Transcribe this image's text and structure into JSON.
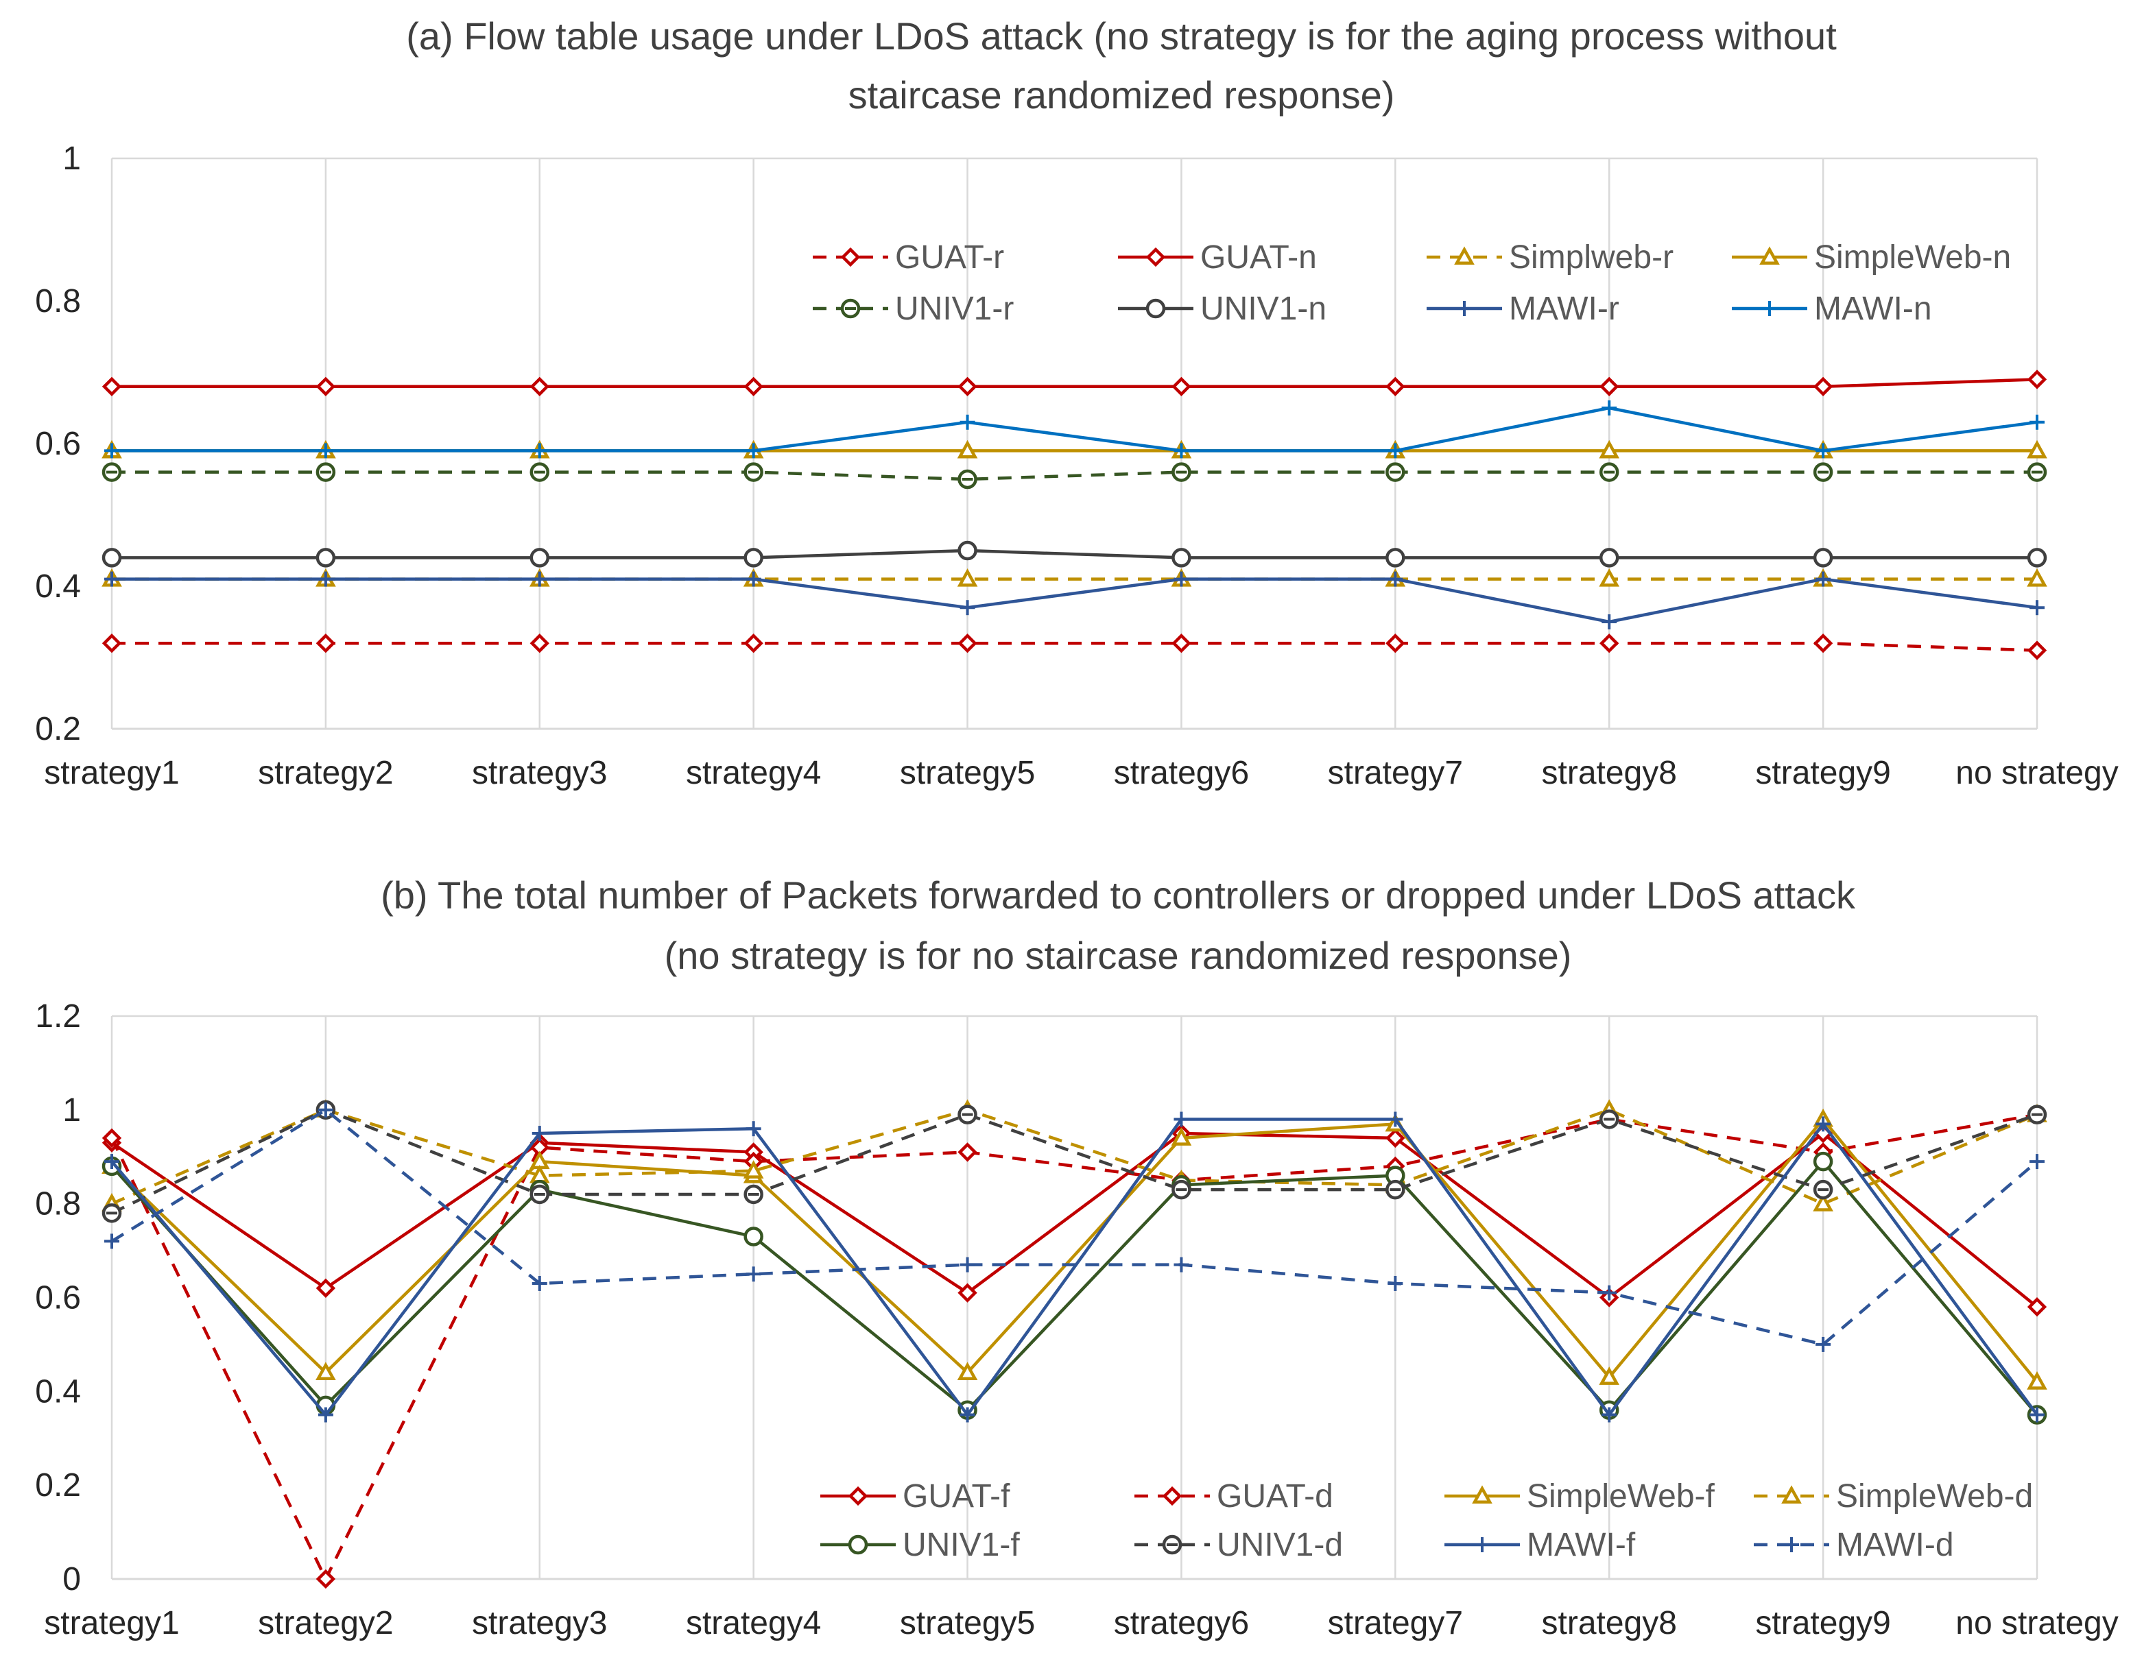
{
  "chart_data": [
    {
      "type": "line",
      "title": [
        "(a) Flow table usage under LDoS attack (no strategy is for the aging process without",
        "staircase randomized response)"
      ],
      "categories": [
        "strategy1",
        "strategy2",
        "strategy3",
        "strategy4",
        "strategy5",
        "strategy6",
        "strategy7",
        "strategy8",
        "strategy9",
        "no strategy"
      ],
      "ylim": [
        0.2,
        1
      ],
      "yticks": [
        "0.2",
        "0.4",
        "0.6",
        "0.8",
        "1"
      ],
      "ytick_values": [
        0.2,
        0.4,
        0.6,
        0.8,
        1.0
      ],
      "grid": "vertical",
      "legend_position": "top",
      "series": [
        {
          "name": "GUAT-r",
          "color": "#c00000",
          "dash": true,
          "marker": "diamond",
          "values": [
            0.32,
            0.32,
            0.32,
            0.32,
            0.32,
            0.32,
            0.32,
            0.32,
            0.32,
            0.31
          ]
        },
        {
          "name": "GUAT-n",
          "color": "#c00000",
          "dash": false,
          "marker": "diamond",
          "values": [
            0.68,
            0.68,
            0.68,
            0.68,
            0.68,
            0.68,
            0.68,
            0.68,
            0.68,
            0.69
          ]
        },
        {
          "name": "Simplweb-r",
          "color": "#bf9000",
          "dash": true,
          "marker": "triangle",
          "values": [
            0.41,
            0.41,
            0.41,
            0.41,
            0.41,
            0.41,
            0.41,
            0.41,
            0.41,
            0.41
          ]
        },
        {
          "name": "SimpleWeb-n",
          "color": "#bf9000",
          "dash": false,
          "marker": "triangle",
          "values": [
            0.59,
            0.59,
            0.59,
            0.59,
            0.59,
            0.59,
            0.59,
            0.59,
            0.59,
            0.59
          ]
        },
        {
          "name": "UNIV1-r",
          "color": "#375623",
          "dash": true,
          "marker": "circle-line",
          "values": [
            0.56,
            0.56,
            0.56,
            0.56,
            0.55,
            0.56,
            0.56,
            0.56,
            0.56,
            0.56
          ]
        },
        {
          "name": "UNIV1-n",
          "color": "#404040",
          "dash": false,
          "marker": "circle",
          "values": [
            0.44,
            0.44,
            0.44,
            0.44,
            0.45,
            0.44,
            0.44,
            0.44,
            0.44,
            0.44
          ]
        },
        {
          "name": "MAWI-r",
          "color": "#2f5597",
          "dash": false,
          "marker": "plus",
          "values": [
            0.41,
            0.41,
            0.41,
            0.41,
            0.37,
            0.41,
            0.41,
            0.35,
            0.41,
            0.37
          ]
        },
        {
          "name": "MAWI-n",
          "color": "#0070c0",
          "dash": false,
          "marker": "plus",
          "values": [
            0.59,
            0.59,
            0.59,
            0.59,
            0.63,
            0.59,
            0.59,
            0.65,
            0.59,
            0.63
          ]
        }
      ]
    },
    {
      "type": "line",
      "title": [
        "(b) The total number of Packets forwarded to controllers or dropped   under LDoS attack",
        "(no strategy is for no staircase randomized response)"
      ],
      "categories": [
        "strategy1",
        "strategy2",
        "strategy3",
        "strategy4",
        "strategy5",
        "strategy6",
        "strategy7",
        "strategy8",
        "strategy9",
        "no strategy"
      ],
      "ylim": [
        0,
        1.2
      ],
      "yticks": [
        "0",
        "0.2",
        "0.4",
        "0.6",
        "0.8",
        "1",
        "1.2"
      ],
      "ytick_values": [
        0,
        0.2,
        0.4,
        0.6,
        0.8,
        1.0,
        1.2
      ],
      "grid": "vertical",
      "legend_position": "bottom",
      "series": [
        {
          "name": "GUAT-f",
          "color": "#c00000",
          "dash": false,
          "marker": "diamond",
          "values": [
            0.93,
            0.62,
            0.93,
            0.91,
            0.61,
            0.95,
            0.94,
            0.6,
            0.95,
            0.58
          ]
        },
        {
          "name": "GUAT-d",
          "color": "#c00000",
          "dash": true,
          "marker": "diamond",
          "values": [
            0.94,
            0.0,
            0.92,
            0.89,
            0.91,
            0.85,
            0.88,
            0.98,
            0.91,
            0.99
          ]
        },
        {
          "name": "SimpleWeb-f",
          "color": "#bf9000",
          "dash": false,
          "marker": "triangle",
          "values": [
            0.88,
            0.44,
            0.89,
            0.86,
            0.44,
            0.94,
            0.97,
            0.43,
            0.98,
            0.42
          ]
        },
        {
          "name": "SimpleWeb-d",
          "color": "#bf9000",
          "dash": true,
          "marker": "triangle",
          "values": [
            0.8,
            1.0,
            0.86,
            0.87,
            1.0,
            0.85,
            0.84,
            1.0,
            0.8,
            0.99
          ]
        },
        {
          "name": "UNIV1-f",
          "color": "#375623",
          "dash": false,
          "marker": "circle",
          "values": [
            0.88,
            0.37,
            0.83,
            0.73,
            0.36,
            0.84,
            0.86,
            0.36,
            0.89,
            0.35
          ]
        },
        {
          "name": "UNIV1-d",
          "color": "#404040",
          "dash": true,
          "marker": "circle-line",
          "values": [
            0.78,
            1.0,
            0.82,
            0.82,
            0.99,
            0.83,
            0.83,
            0.98,
            0.83,
            0.99
          ]
        },
        {
          "name": "MAWI-f",
          "color": "#2f5597",
          "dash": false,
          "marker": "plus",
          "values": [
            0.89,
            0.35,
            0.95,
            0.96,
            0.35,
            0.98,
            0.98,
            0.35,
            0.97,
            0.35
          ]
        },
        {
          "name": "MAWI-d",
          "color": "#2f5597",
          "dash": true,
          "marker": "plus",
          "values": [
            0.72,
            1.0,
            0.63,
            0.65,
            0.67,
            0.67,
            0.63,
            0.61,
            0.5,
            0.89
          ]
        }
      ]
    }
  ]
}
